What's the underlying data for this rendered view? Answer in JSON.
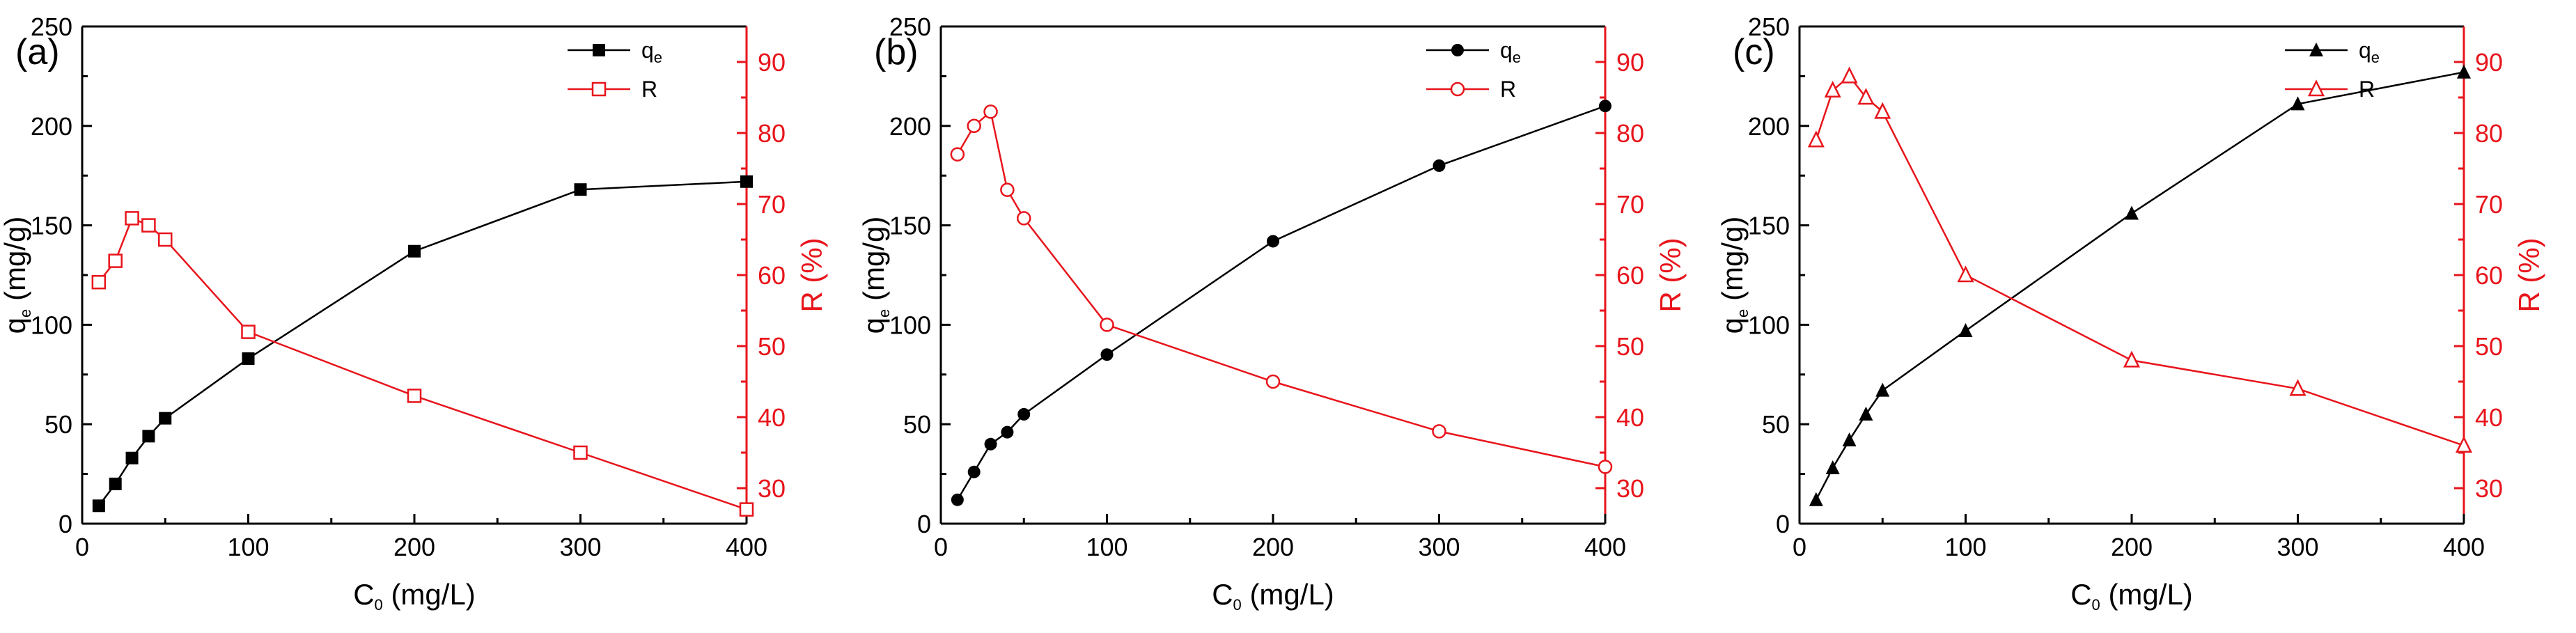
{
  "figure": {
    "colors": {
      "qe": "#000000",
      "R": "#e8141b"
    },
    "x_ticks": [
      "0",
      "100",
      "200",
      "300",
      "400"
    ],
    "y_left_ticks": [
      "0",
      "50",
      "100",
      "150",
      "200",
      "250"
    ],
    "y_right_ticks": [
      "30",
      "40",
      "50",
      "60",
      "70",
      "80",
      "90"
    ]
  },
  "chart_data": [
    {
      "panel": "(a)",
      "type": "line",
      "xlabel": "C0 (mg/L)",
      "ylabel_left": "qe (mg/g)",
      "ylabel_right": "R (%)",
      "xlim": [
        0,
        400
      ],
      "ylim_left": [
        0,
        250
      ],
      "ylim_right": [
        25,
        95
      ],
      "legend_placement": "top-right",
      "series": [
        {
          "name": "qe",
          "axis": "left",
          "marker": "square",
          "x": [
            10,
            20,
            30,
            40,
            50,
            100,
            200,
            300,
            400
          ],
          "y": [
            9,
            20,
            33,
            44,
            53,
            83,
            137,
            168,
            172
          ]
        },
        {
          "name": "R",
          "axis": "right",
          "marker": "open-square",
          "x": [
            10,
            20,
            30,
            40,
            50,
            100,
            200,
            300,
            400
          ],
          "y": [
            59,
            62,
            68,
            67,
            65,
            52,
            43,
            35,
            27
          ]
        }
      ]
    },
    {
      "panel": "(b)",
      "type": "line",
      "xlabel": "C0 (mg/L)",
      "ylabel_left": "qe (mg/g)",
      "ylabel_right": "R (%)",
      "xlim": [
        0,
        400
      ],
      "ylim_left": [
        0,
        250
      ],
      "ylim_right": [
        25,
        95
      ],
      "legend_placement": "top-right",
      "series": [
        {
          "name": "qe",
          "axis": "left",
          "marker": "circle",
          "x": [
            10,
            20,
            30,
            40,
            50,
            100,
            200,
            300,
            400
          ],
          "y": [
            12,
            26,
            40,
            46,
            55,
            85,
            142,
            180,
            210
          ]
        },
        {
          "name": "R",
          "axis": "right",
          "marker": "open-circle",
          "x": [
            10,
            20,
            30,
            40,
            50,
            100,
            200,
            300,
            400
          ],
          "y": [
            77,
            81,
            83,
            72,
            68,
            53,
            45,
            38,
            33
          ]
        }
      ]
    },
    {
      "panel": "(c)",
      "type": "line",
      "xlabel": "C0 (mg/L)",
      "ylabel_left": "qe (mg/g)",
      "ylabel_right": "R (%)",
      "xlim": [
        0,
        400
      ],
      "ylim_left": [
        0,
        250
      ],
      "ylim_right": [
        25,
        95
      ],
      "legend_placement": "top-right",
      "series": [
        {
          "name": "qe",
          "axis": "left",
          "marker": "triangle",
          "x": [
            10,
            20,
            30,
            40,
            50,
            100,
            200,
            300,
            400
          ],
          "y": [
            12,
            28,
            42,
            55,
            67,
            97,
            156,
            211,
            227
          ]
        },
        {
          "name": "R",
          "axis": "right",
          "marker": "open-triangle",
          "x": [
            10,
            20,
            30,
            40,
            50,
            100,
            200,
            300,
            400
          ],
          "y": [
            79,
            86,
            88,
            85,
            83,
            60,
            48,
            44,
            36
          ]
        }
      ]
    }
  ]
}
